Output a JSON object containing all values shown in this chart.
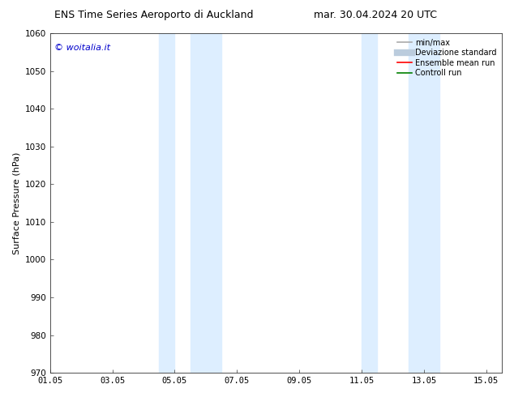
{
  "title_left": "ENS Time Series Aeroporto di Auckland",
  "title_right": "mar. 30.04.2024 20 UTC",
  "ylabel": "Surface Pressure (hPa)",
  "xlim": [
    0,
    14.5
  ],
  "ylim": [
    970,
    1060
  ],
  "yticks": [
    970,
    980,
    990,
    1000,
    1010,
    1020,
    1030,
    1040,
    1050,
    1060
  ],
  "xtick_labels": [
    "01.05",
    "03.05",
    "05.05",
    "07.05",
    "09.05",
    "11.05",
    "13.05",
    "15.05"
  ],
  "xtick_positions": [
    0,
    2,
    4,
    6,
    8,
    10,
    12,
    14
  ],
  "shaded_bands": [
    {
      "xmin": 3.5,
      "xmax": 4.0
    },
    {
      "xmin": 4.5,
      "xmax": 5.5
    },
    {
      "xmin": 10.0,
      "xmax": 10.5
    },
    {
      "xmin": 11.5,
      "xmax": 12.5
    }
  ],
  "shaded_color": "#ddeeff",
  "watermark_text": "© woitalia.it",
  "watermark_color": "#0000cc",
  "legend_items": [
    {
      "label": "min/max",
      "color": "#aaaaaa",
      "lw": 1.2
    },
    {
      "label": "Deviazione standard",
      "color": "#bbccdd",
      "lw": 6
    },
    {
      "label": "Ensemble mean run",
      "color": "#ff0000",
      "lw": 1.2
    },
    {
      "label": "Controll run",
      "color": "#008000",
      "lw": 1.2
    }
  ],
  "background_color": "#ffffff",
  "title_fontsize": 9,
  "ylabel_fontsize": 8,
  "tick_fontsize": 7.5,
  "watermark_fontsize": 8,
  "legend_fontsize": 7
}
